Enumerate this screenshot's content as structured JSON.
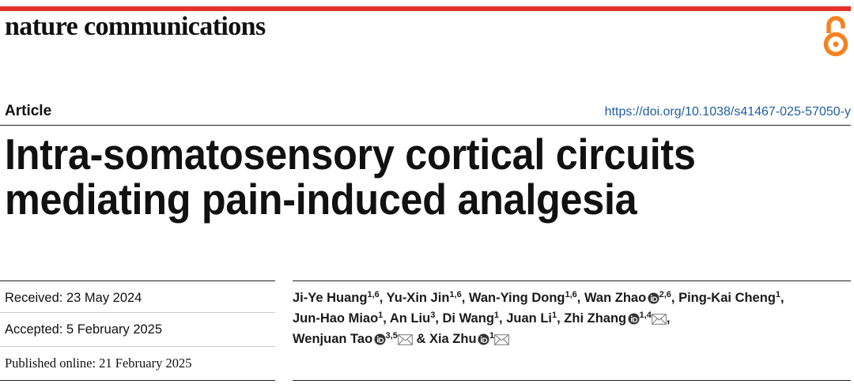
{
  "journal": "nature communications",
  "article_type": "Article",
  "doi": "https://doi.org/10.1038/s41467-025-57050-y",
  "title_lines": [
    "Intra-somatosensory cortical circuits",
    "mediating pain-induced analgesia"
  ],
  "dates": [
    "Received: 23 May 2024",
    "Accepted: 5 February 2025",
    "Published online: 21 February 2025"
  ],
  "authors": [
    {
      "name": "Ji-Ye Huang",
      "affiliations": "1,6",
      "separator": ","
    },
    {
      "name": "Yu-Xin Jin",
      "affiliations": "1,6",
      "separator": ","
    },
    {
      "name": "Wan-Ying Dong",
      "affiliations": "1,6",
      "separator": ","
    },
    {
      "name": "Wan Zhao",
      "affiliations": "2,6",
      "orcid": true,
      "separator": ","
    },
    {
      "name": "Ping-Kai Cheng",
      "affiliations": "1",
      "separator": ","
    },
    {
      "name": "Jun-Hao Miao",
      "affiliations": "1",
      "separator": ","
    },
    {
      "name": "An Liu",
      "affiliations": "3",
      "separator": ","
    },
    {
      "name": "Di Wang",
      "affiliations": "1",
      "separator": ","
    },
    {
      "name": "Juan Li",
      "affiliations": "1",
      "separator": ","
    },
    {
      "name": "Zhi Zhang",
      "affiliations": "1,4",
      "orcid": true,
      "corresponding": true,
      "separator": ","
    },
    {
      "name": "Wenjuan Tao",
      "affiliations": "3,5",
      "orcid": true,
      "corresponding": true,
      "separator": "&"
    },
    {
      "name": "Xia Zhu",
      "affiliations": "1",
      "orcid": true,
      "corresponding": true
    }
  ]
}
